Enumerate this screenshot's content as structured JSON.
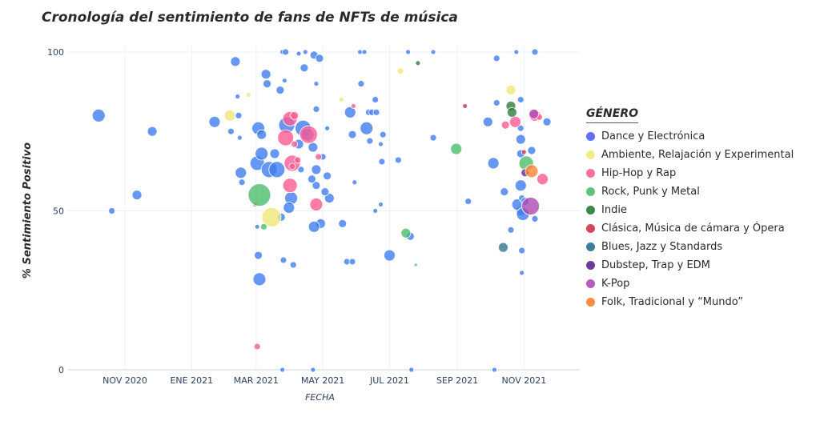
{
  "chart_data": {
    "type": "scatter",
    "title": "Cronología del sentimiento de fans de NFTs de música",
    "xlabel": "FECHA",
    "ylabel": "% Sentimiento Positivo",
    "xlim": [
      "2020-09-10",
      "2021-12-22"
    ],
    "ylim": [
      0,
      102
    ],
    "xticks": [
      {
        "date": "2020-11-01",
        "label": "NOV 2020"
      },
      {
        "date": "2021-01-01",
        "label": "ENE 2021"
      },
      {
        "date": "2021-03-01",
        "label": "MAR 2021"
      },
      {
        "date": "2021-05-01",
        "label": "MAY 2021"
      },
      {
        "date": "2021-07-01",
        "label": "JUL 2021"
      },
      {
        "date": "2021-09-01",
        "label": "SEP 2021"
      },
      {
        "date": "2021-11-01",
        "label": "NOV 2021"
      }
    ],
    "yticks": [
      0,
      50,
      100
    ],
    "grid": true,
    "legend_title": "GÉNERO",
    "legend_position": "right",
    "point_format": [
      "date",
      "y",
      "size"
    ],
    "series": [
      {
        "name": "Dance y Electrónica",
        "color": "#636efa",
        "fill": "#3f7df0",
        "points": [
          [
            "2020-10-08",
            80,
            8
          ],
          [
            "2020-10-20",
            50,
            4
          ],
          [
            "2020-11-12",
            55,
            6
          ],
          [
            "2020-11-26",
            75,
            6
          ],
          [
            "2021-01-22",
            78,
            7
          ],
          [
            "2021-02-06",
            75,
            4
          ],
          [
            "2021-02-10",
            97,
            6
          ],
          [
            "2021-02-12",
            86,
            3
          ],
          [
            "2021-02-13",
            80,
            4
          ],
          [
            "2021-02-14",
            73,
            3
          ],
          [
            "2021-02-15",
            62,
            7
          ],
          [
            "2021-02-16",
            59,
            4
          ],
          [
            "2021-03-02",
            65,
            9
          ],
          [
            "2021-03-03",
            76,
            8
          ],
          [
            "2021-03-06",
            74,
            6
          ],
          [
            "2021-03-06",
            68,
            8
          ],
          [
            "2021-03-10",
            93,
            6
          ],
          [
            "2021-03-11",
            90,
            5
          ],
          [
            "2021-03-13",
            63,
            10
          ],
          [
            "2021-03-20",
            63,
            10
          ],
          [
            "2021-03-23",
            88,
            5
          ],
          [
            "2021-03-24",
            48,
            5
          ],
          [
            "2021-03-27",
            91,
            3
          ],
          [
            "2021-03-25",
            100,
            3
          ],
          [
            "2021-03-28",
            100,
            4
          ],
          [
            "2021-03-18",
            68,
            6
          ],
          [
            "2021-04-09",
            99.5,
            3
          ],
          [
            "2021-04-14",
            95,
            5
          ],
          [
            "2021-04-15",
            100,
            3
          ],
          [
            "2021-04-23",
            99,
            5
          ],
          [
            "2021-04-28",
            98,
            5
          ],
          [
            "2021-04-25",
            90,
            3
          ],
          [
            "2021-04-25",
            82,
            4
          ],
          [
            "2021-03-29",
            77,
            10
          ],
          [
            "2021-04-09",
            71,
            6
          ],
          [
            "2021-04-13",
            76,
            10
          ],
          [
            "2021-04-17",
            74,
            8
          ],
          [
            "2021-04-22",
            70,
            6
          ],
          [
            "2021-04-25",
            63,
            6
          ],
          [
            "2021-04-21",
            60,
            5
          ],
          [
            "2021-04-25",
            58,
            5
          ],
          [
            "2021-05-07",
            54,
            6
          ],
          [
            "2021-05-03",
            56,
            5
          ],
          [
            "2021-05-05",
            61,
            5
          ],
          [
            "2021-05-01",
            67,
            4
          ],
          [
            "2021-04-29",
            46,
            6
          ],
          [
            "2021-04-23",
            45,
            7
          ],
          [
            "2021-04-02",
            54,
            8
          ],
          [
            "2021-03-31",
            51,
            7
          ],
          [
            "2021-04-04",
            33,
            4
          ],
          [
            "2021-03-26",
            34.5,
            4
          ],
          [
            "2021-03-03",
            36,
            5
          ],
          [
            "2021-03-04",
            28.5,
            8
          ],
          [
            "2021-03-02",
            45,
            3
          ],
          [
            "2021-04-11",
            63,
            4
          ],
          [
            "2021-03-25",
            0,
            3
          ],
          [
            "2021-04-22",
            0,
            3
          ],
          [
            "2021-05-05",
            76,
            3
          ],
          [
            "2021-05-19",
            46,
            5
          ],
          [
            "2021-05-23",
            34,
            4
          ],
          [
            "2021-05-28",
            34,
            4
          ],
          [
            "2021-05-26",
            81,
            7
          ],
          [
            "2021-05-28",
            74,
            5
          ],
          [
            "2021-05-30",
            59,
            3
          ],
          [
            "2021-06-04",
            100,
            3
          ],
          [
            "2021-06-08",
            100,
            3
          ],
          [
            "2021-06-05",
            90,
            4
          ],
          [
            "2021-06-10",
            76,
            8
          ],
          [
            "2021-06-12",
            81,
            4
          ],
          [
            "2021-06-15",
            81,
            4
          ],
          [
            "2021-06-13",
            72,
            4
          ],
          [
            "2021-06-18",
            85,
            4
          ],
          [
            "2021-06-19",
            81,
            4
          ],
          [
            "2021-06-25",
            74,
            4
          ],
          [
            "2021-06-23",
            71,
            3
          ],
          [
            "2021-06-24",
            65.5,
            4
          ],
          [
            "2021-06-18",
            50,
            3
          ],
          [
            "2021-06-23",
            52,
            3
          ],
          [
            "2021-07-01",
            36,
            7
          ],
          [
            "2021-07-09",
            66,
            4
          ],
          [
            "2021-07-18",
            100,
            3
          ],
          [
            "2021-07-20",
            42,
            5
          ],
          [
            "2021-07-21",
            0,
            3
          ],
          [
            "2021-08-10",
            100,
            3
          ],
          [
            "2021-08-10",
            73,
            4
          ],
          [
            "2021-09-11",
            53,
            4
          ],
          [
            "2021-09-29",
            78,
            6
          ],
          [
            "2021-10-04",
            65,
            7
          ],
          [
            "2021-10-07",
            98,
            4
          ],
          [
            "2021-10-07",
            84,
            4
          ],
          [
            "2021-10-14",
            56,
            5
          ],
          [
            "2021-10-20",
            44,
            4
          ],
          [
            "2021-10-25",
            100,
            3
          ],
          [
            "2021-10-29",
            50,
            6
          ],
          [
            "2021-10-26",
            52,
            7
          ],
          [
            "2021-10-29",
            58,
            7
          ],
          [
            "2021-10-30",
            54,
            4
          ],
          [
            "2021-10-29",
            68,
            5
          ],
          [
            "2021-10-29",
            72.5,
            6
          ],
          [
            "2021-10-29",
            76,
            4
          ],
          [
            "2021-10-29",
            85,
            4
          ],
          [
            "2021-10-30",
            37.5,
            4
          ],
          [
            "2021-10-30",
            30.5,
            3
          ],
          [
            "2021-10-31",
            49,
            8
          ],
          [
            "2021-11-02",
            53,
            5
          ],
          [
            "2021-11-08",
            69,
            5
          ],
          [
            "2021-11-11",
            100,
            4
          ],
          [
            "2021-11-11",
            47.5,
            4
          ],
          [
            "2021-11-22",
            78,
            5
          ],
          [
            "2021-10-05",
            0,
            3
          ]
        ]
      },
      {
        "name": "Ambiente, Relajación y Experimental",
        "color": "#f2ec85",
        "fill": "#efe87a",
        "points": [
          [
            "2021-02-05",
            80,
            7
          ],
          [
            "2021-02-22",
            86.5,
            3
          ],
          [
            "2021-03-15",
            48,
            12
          ],
          [
            "2021-05-18",
            85,
            3
          ],
          [
            "2021-07-11",
            94,
            4
          ],
          [
            "2021-10-20",
            88,
            6
          ]
        ]
      },
      {
        "name": "Hip-Hop y Rap",
        "color": "#ff6f9f",
        "fill": "#ff5a92",
        "points": [
          [
            "2021-03-02",
            7.3,
            4
          ],
          [
            "2021-02-28",
            52,
            3
          ],
          [
            "2021-03-28",
            73,
            10
          ],
          [
            "2021-04-01",
            79,
            9
          ],
          [
            "2021-04-05",
            80,
            5
          ],
          [
            "2021-04-03",
            65,
            10
          ],
          [
            "2021-04-01",
            58,
            9
          ],
          [
            "2021-04-05",
            71,
            4
          ],
          [
            "2021-04-08",
            66,
            4
          ],
          [
            "2021-04-03",
            64,
            4
          ],
          [
            "2021-04-18",
            74,
            11
          ],
          [
            "2021-04-25",
            52,
            8
          ],
          [
            "2021-04-27",
            67,
            4
          ],
          [
            "2021-05-29",
            83,
            3
          ],
          [
            "2021-10-15",
            77,
            5
          ],
          [
            "2021-10-24",
            78,
            7
          ],
          [
            "2021-11-11",
            80,
            7
          ],
          [
            "2021-11-15",
            79.5,
            4
          ],
          [
            "2021-11-18",
            60,
            7
          ]
        ]
      },
      {
        "name": "Rock, Punk y Metal",
        "color": "#5fc47a",
        "fill": "#4cbd6a",
        "points": [
          [
            "2021-03-04",
            55,
            14
          ],
          [
            "2021-03-08",
            45,
            4
          ],
          [
            "2021-07-16",
            43,
            6
          ],
          [
            "2021-07-25",
            33,
            2
          ],
          [
            "2021-08-31",
            69.5,
            7
          ],
          [
            "2021-11-03",
            65,
            9
          ]
        ]
      },
      {
        "name": "Indie",
        "color": "#3a8a47",
        "fill": "#2f7d3c",
        "points": [
          [
            "2021-07-27",
            96.5,
            3
          ],
          [
            "2021-10-20",
            83,
            6
          ],
          [
            "2021-10-21",
            81,
            6
          ]
        ]
      },
      {
        "name": "Clásica, Música de cámara y Ópera",
        "color": "#d1495b",
        "fill": "#c63a50",
        "points": [
          [
            "2021-09-08",
            83,
            3
          ],
          [
            "2021-11-01",
            68.5,
            3
          ]
        ]
      },
      {
        "name": "Blues, Jazz y Standards",
        "color": "#3d7f96",
        "fill": "#2f7590",
        "points": [
          [
            "2021-10-13",
            38.5,
            6
          ]
        ]
      },
      {
        "name": "Dubstep, Trap y EDM",
        "color": "#6a3d9a",
        "fill": "#5e2d91",
        "points": [
          [
            "2021-11-02",
            62,
            5
          ]
        ]
      },
      {
        "name": "K-Pop",
        "color": "#b95bc0",
        "fill": "#ad48b5",
        "points": [
          [
            "2021-11-07",
            51.5,
            11
          ],
          [
            "2021-11-10",
            80.5,
            6
          ]
        ]
      },
      {
        "name": "Folk, Tradicional y “Mundo”",
        "color": "#ff8c42",
        "fill": "#fb8536",
        "points": [
          [
            "2021-11-08",
            62.5,
            8
          ]
        ]
      }
    ]
  }
}
